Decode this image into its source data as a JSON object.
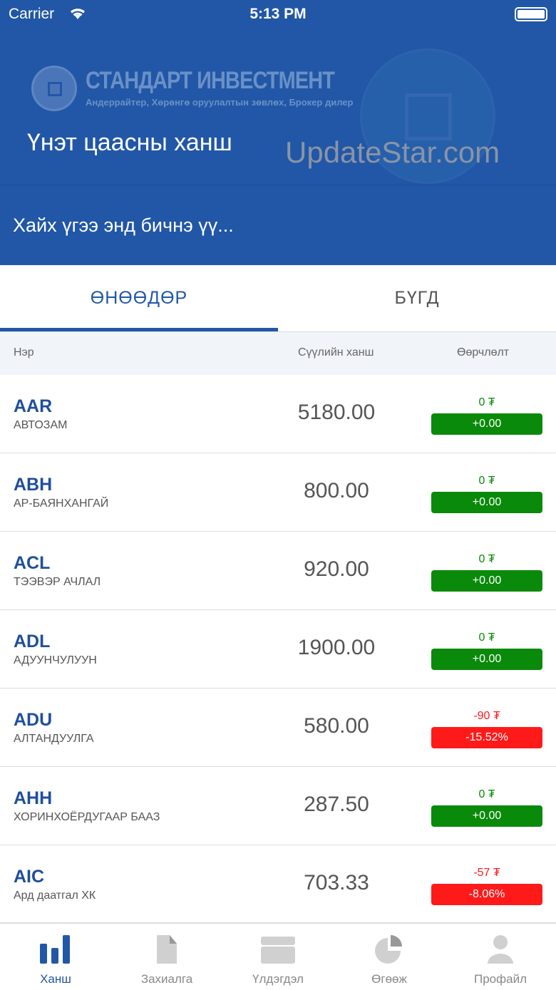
{
  "status": {
    "carrier": "Carrier",
    "time": "5:13 PM"
  },
  "header": {
    "logo_title": "СТАНДАРТ ИНВЕСТМЕНТ",
    "logo_subtitle": "Андеррайтер, Хөрөнгө оруулалтын зөвлөх, Брокер дилер",
    "title": "Үнэт цаасны ханш"
  },
  "search": {
    "placeholder": "Хайх үгээ энд бичнэ үү..."
  },
  "tabs": [
    {
      "label": "ӨНӨӨДӨР",
      "active": true
    },
    {
      "label": "БҮГД",
      "active": false
    }
  ],
  "table": {
    "columns": [
      "Нэр",
      "Сүүлийн ханш",
      "Өөрчлөлт"
    ],
    "rows": [
      {
        "symbol": "AAR",
        "name": "АВТОЗАМ",
        "price": "5180.00",
        "change": "0 ₮",
        "percent": "+0.00",
        "trend": "up"
      },
      {
        "symbol": "ABH",
        "name": "АР-БАЯНХАНГАЙ",
        "price": "800.00",
        "change": "0 ₮",
        "percent": "+0.00",
        "trend": "up"
      },
      {
        "symbol": "ACL",
        "name": "ТЭЭВЭР АЧЛАЛ",
        "price": "920.00",
        "change": "0 ₮",
        "percent": "+0.00",
        "trend": "up"
      },
      {
        "symbol": "ADL",
        "name": "АДУУНЧУЛУУН",
        "price": "1900.00",
        "change": "0 ₮",
        "percent": "+0.00",
        "trend": "up"
      },
      {
        "symbol": "ADU",
        "name": "АЛТАНДУУЛГА",
        "price": "580.00",
        "change": "-90 ₮",
        "percent": "-15.52%",
        "trend": "down"
      },
      {
        "symbol": "AHH",
        "name": "ХОРИНХОЁРДУГААР БААЗ",
        "price": "287.50",
        "change": "0 ₮",
        "percent": "+0.00",
        "trend": "up"
      },
      {
        "symbol": "AIC",
        "name": "Ард даатгал ХК",
        "price": "703.33",
        "change": "-57 ₮",
        "percent": "-8.06%",
        "trend": "down"
      }
    ]
  },
  "colors": {
    "primary": "#2157a6",
    "up": "#0a8a0a",
    "down": "#ff1a1a"
  },
  "watermark": "UpdateStar.com",
  "nav": [
    {
      "label": "Ханш",
      "icon": "bar-chart-icon",
      "active": true
    },
    {
      "label": "Захиалга",
      "icon": "document-icon"
    },
    {
      "label": "Үлдэгдэл",
      "icon": "wallet-icon"
    },
    {
      "label": "Өгөөж",
      "icon": "pie-chart-icon"
    },
    {
      "label": "Профайл",
      "icon": "user-icon"
    }
  ]
}
